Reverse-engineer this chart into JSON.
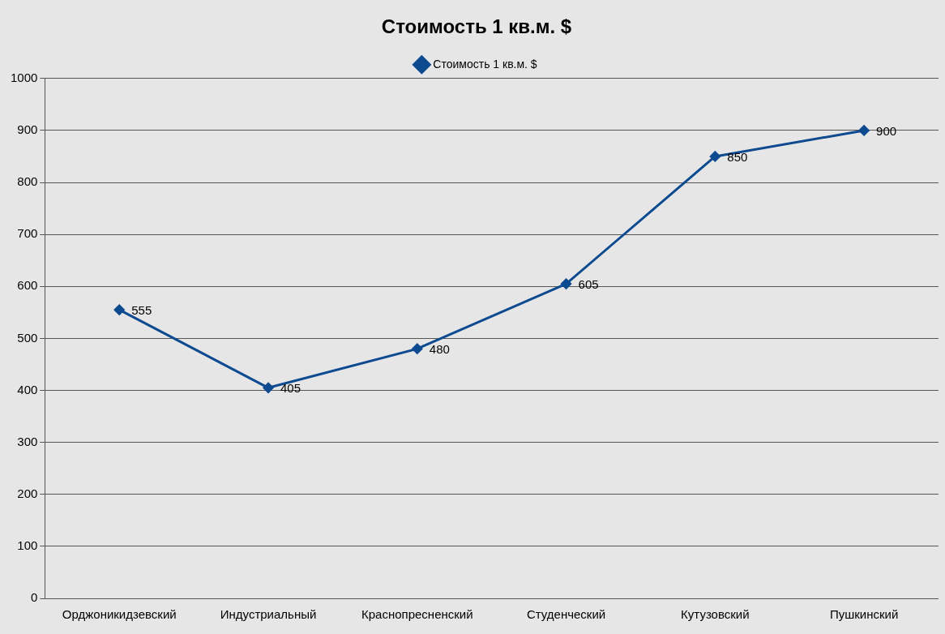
{
  "chart_data": {
    "type": "line",
    "title": "Стоимость 1 кв.м. $",
    "categories": [
      "Орджоникидзевский",
      "Индустриальный",
      "Краснопресненский",
      "Студенческий",
      "Кутузовский",
      "Пушкинский"
    ],
    "series": [
      {
        "name": "Стоимость 1 кв.м. $",
        "color": "#0d4a8f",
        "values": [
          555,
          405,
          480,
          605,
          850,
          900
        ]
      }
    ],
    "ylim": [
      0,
      1000
    ],
    "yticks": [
      0,
      100,
      200,
      300,
      400,
      500,
      600,
      700,
      800,
      900,
      1000
    ],
    "grid": "y",
    "legend": "top",
    "marker": "diamond",
    "line_style": "solid",
    "data_labels": true
  }
}
